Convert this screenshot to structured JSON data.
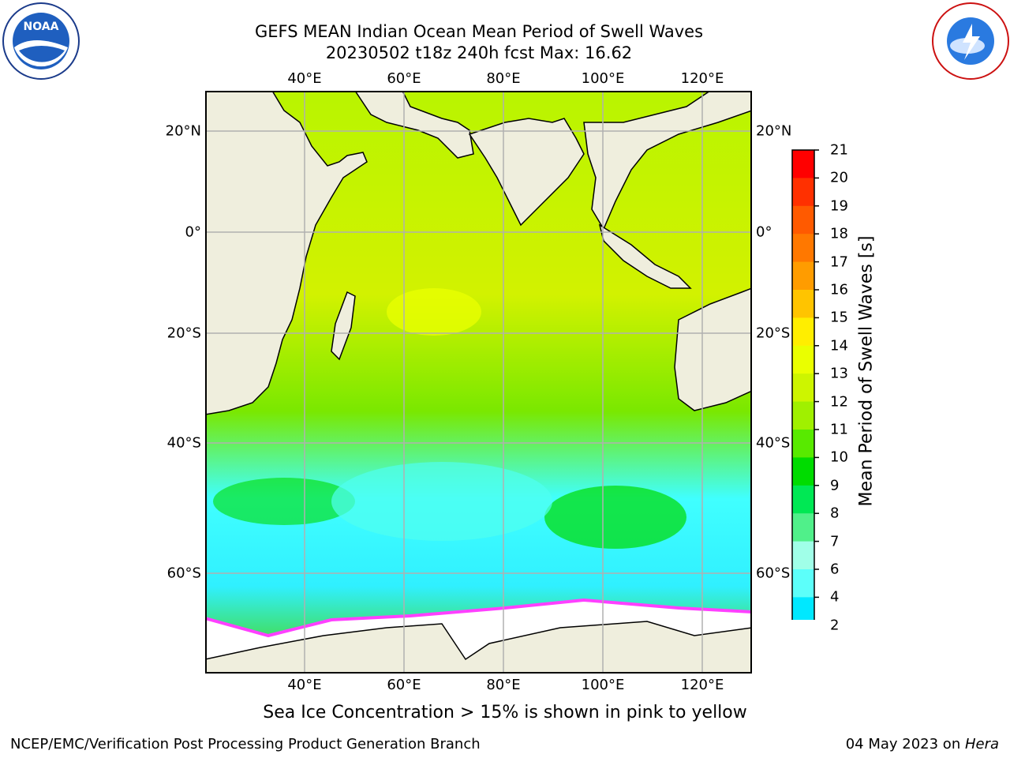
{
  "header": {
    "title_line1": "GEFS MEAN Indian Ocean Mean Period of Swell Waves",
    "title_line2": "20230502 t18z 240h fcst   Max: 16.62"
  },
  "logos": {
    "left": "noara-logo",
    "right": "national-weather-service-logo"
  },
  "map": {
    "lon_ticks": [
      "40°E",
      "60°E",
      "80°E",
      "100°E",
      "120°E"
    ],
    "lat_ticks": [
      "20°N",
      "0°",
      "20°S",
      "40°S",
      "60°S"
    ],
    "land_color": "#efeedd",
    "ice_color": "#ffffff",
    "grid_color": "#b0b0b0"
  },
  "colorbar": {
    "label": "Mean Period of Swell Waves [s]",
    "ticks": [
      "21",
      "20",
      "19",
      "18",
      "17",
      "16",
      "15",
      "14",
      "13",
      "12",
      "11",
      "10",
      "9",
      "8",
      "7",
      "6",
      "4",
      "2"
    ],
    "colors": [
      "#ff0000",
      "#ff3000",
      "#ff5a00",
      "#ff7800",
      "#ff9c00",
      "#ffc400",
      "#ffee00",
      "#eaff00",
      "#cdf500",
      "#a0f000",
      "#58ea00",
      "#00dc00",
      "#00e854",
      "#50f08a",
      "#a0ffe8",
      "#5cfffa",
      "#00e8ff",
      "#0090ff",
      "#0050ff"
    ],
    "under_color": "#0000ff"
  },
  "note": "Sea Ice Concentration > 15% is shown in pink to yellow",
  "footer": {
    "left": "NCEP/EMC/Verification Post Processing Product Generation Branch",
    "right_date": "04 May 2023 on ",
    "right_host": "Hera"
  }
}
